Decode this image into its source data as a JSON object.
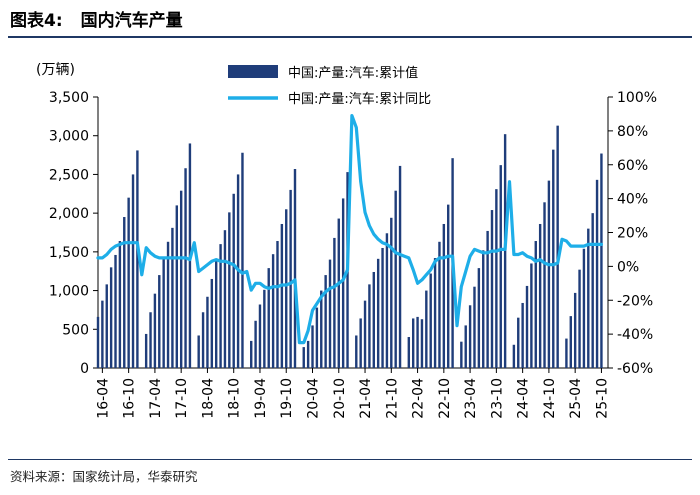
{
  "figure": {
    "number": "图表4:",
    "title": "国内汽车产量"
  },
  "source": "资料来源：国家统计局，华泰研究",
  "chart_data": {
    "type": "bar",
    "title": "国内汽车产量",
    "y_left_unit": "(万辆)",
    "y_left_ticks": [
      "0",
      "500",
      "1,000",
      "1,500",
      "2,000",
      "2,500",
      "3,000",
      "3,500"
    ],
    "y_left_lim": [
      0,
      3500
    ],
    "y_right_ticks": [
      "-60%",
      "-40%",
      "-20%",
      "0%",
      "20%",
      "40%",
      "60%",
      "80%",
      "100%"
    ],
    "y_right_lim": [
      -60,
      100
    ],
    "x_ticks": [
      "16-04",
      "16-10",
      "17-04",
      "17-10",
      "18-04",
      "18-10",
      "19-04",
      "19-10",
      "20-04",
      "20-10",
      "21-04",
      "21-10",
      "22-04",
      "22-10",
      "23-04",
      "23-10",
      "24-04",
      "24-10",
      "25-04",
      "25-10"
    ],
    "colors": {
      "bar": "#1f3d7a",
      "line": "#1eaee8",
      "rule": "#1f3864"
    },
    "series": [
      {
        "name": "中国:产量:汽车:累计值",
        "kind": "bar",
        "axis": "left",
        "dates": [
          "16-03",
          "16-04",
          "16-05",
          "16-06",
          "16-07",
          "16-08",
          "16-09",
          "16-10",
          "16-11",
          "16-12",
          "17-02",
          "17-03",
          "17-04",
          "17-05",
          "17-06",
          "17-07",
          "17-08",
          "17-09",
          "17-10",
          "17-11",
          "17-12",
          "18-02",
          "18-03",
          "18-04",
          "18-05",
          "18-06",
          "18-07",
          "18-08",
          "18-09",
          "18-10",
          "18-11",
          "18-12",
          "19-02",
          "19-03",
          "19-04",
          "19-05",
          "19-06",
          "19-07",
          "19-08",
          "19-09",
          "19-10",
          "19-11",
          "19-12",
          "20-02",
          "20-03",
          "20-04",
          "20-05",
          "20-06",
          "20-07",
          "20-08",
          "20-09",
          "20-10",
          "20-11",
          "20-12",
          "21-02",
          "21-03",
          "21-04",
          "21-05",
          "21-06",
          "21-07",
          "21-08",
          "21-09",
          "21-10",
          "21-11",
          "21-12",
          "22-02",
          "22-03",
          "22-04",
          "22-05",
          "22-06",
          "22-07",
          "22-08",
          "22-09",
          "22-10",
          "22-11",
          "22-12",
          "23-02",
          "23-03",
          "23-04",
          "23-05",
          "23-06",
          "23-07",
          "23-08",
          "23-09",
          "23-10",
          "23-11",
          "23-12",
          "24-02",
          "24-03",
          "24-04",
          "24-05",
          "24-06",
          "24-07",
          "24-08",
          "24-09",
          "24-10",
          "24-11",
          "24-12",
          "25-02",
          "25-03",
          "25-04",
          "25-05",
          "25-06",
          "25-07",
          "25-08",
          "25-09",
          "25-10"
        ],
        "values": [
          660,
          870,
          1080,
          1300,
          1460,
          1640,
          1950,
          2200,
          2500,
          2810,
          440,
          720,
          960,
          1200,
          1430,
          1630,
          1810,
          2100,
          2290,
          2580,
          2900,
          420,
          720,
          920,
          1150,
          1400,
          1600,
          1780,
          2010,
          2250,
          2500,
          2780,
          350,
          610,
          820,
          1010,
          1290,
          1470,
          1640,
          1860,
          2050,
          2300,
          2570,
          270,
          350,
          550,
          780,
          1000,
          1200,
          1400,
          1680,
          1930,
          2190,
          2530,
          420,
          640,
          870,
          1080,
          1240,
          1410,
          1550,
          1740,
          1940,
          2290,
          2610,
          400,
          640,
          660,
          630,
          1000,
          1220,
          1420,
          1630,
          1860,
          2110,
          2710,
          340,
          550,
          810,
          1050,
          1290,
          1520,
          1770,
          2040,
          2310,
          2620,
          3020,
          300,
          650,
          840,
          1060,
          1350,
          1640,
          1860,
          2140,
          2420,
          2820,
          3130,
          380,
          670,
          970,
          1270,
          1540,
          1800,
          2000,
          2430,
          2770
        ]
      },
      {
        "name": "中国:产量:汽车:累计同比",
        "kind": "line",
        "axis": "right",
        "dates": [
          "16-03",
          "16-04",
          "16-05",
          "16-06",
          "16-07",
          "16-08",
          "16-09",
          "16-10",
          "16-11",
          "16-12",
          "17-01",
          "17-02",
          "17-03",
          "17-04",
          "17-05",
          "17-06",
          "17-07",
          "17-08",
          "17-09",
          "17-10",
          "17-11",
          "17-12",
          "18-01",
          "18-02",
          "18-03",
          "18-04",
          "18-05",
          "18-06",
          "18-07",
          "18-08",
          "18-09",
          "18-10",
          "18-11",
          "18-12",
          "19-01",
          "19-02",
          "19-03",
          "19-04",
          "19-05",
          "19-06",
          "19-07",
          "19-08",
          "19-09",
          "19-10",
          "19-11",
          "19-12",
          "20-01",
          "20-02",
          "20-03",
          "20-04",
          "20-05",
          "20-06",
          "20-07",
          "20-08",
          "20-09",
          "20-10",
          "20-11",
          "20-12",
          "21-01",
          "21-02",
          "21-03",
          "21-04",
          "21-05",
          "21-06",
          "21-07",
          "21-08",
          "21-09",
          "21-10",
          "21-11",
          "21-12",
          "22-01",
          "22-02",
          "22-03",
          "22-04",
          "22-05",
          "22-06",
          "22-07",
          "22-08",
          "22-09",
          "22-10",
          "22-11",
          "22-12",
          "23-01",
          "23-02",
          "23-03",
          "23-04",
          "23-05",
          "23-06",
          "23-07",
          "23-08",
          "23-09",
          "23-10",
          "23-11",
          "23-12",
          "24-01",
          "24-02",
          "24-03",
          "24-04",
          "24-05",
          "24-06",
          "24-07",
          "24-08",
          "24-09",
          "24-10",
          "24-11",
          "24-12",
          "25-01",
          "25-02",
          "25-03",
          "25-04",
          "25-05",
          "25-06",
          "25-07",
          "25-08",
          "25-09",
          "25-10"
        ],
        "values": [
          5,
          5,
          7,
          10,
          12,
          13,
          14,
          14,
          14,
          14,
          -5,
          11,
          8,
          6,
          5,
          5,
          5,
          5,
          5,
          5,
          5,
          4,
          14,
          -3,
          -1,
          1,
          3,
          4,
          3,
          3,
          2,
          1,
          -2,
          -4,
          -3,
          -14,
          -10,
          -10,
          -12,
          -13,
          -12,
          -12,
          -11,
          -11,
          -10,
          -8,
          -45,
          -45,
          -38,
          -26,
          -22,
          -18,
          -15,
          -13,
          -12,
          -10,
          -8,
          -2,
          89,
          82,
          50,
          32,
          24,
          19,
          16,
          14,
          13,
          11,
          8,
          7,
          6,
          5,
          -2,
          -10,
          -8,
          -5,
          -2,
          3,
          5,
          5,
          6,
          6,
          -35,
          -12,
          -3,
          6,
          10,
          9,
          8,
          8,
          9,
          9,
          10,
          10,
          50,
          7,
          7,
          8,
          6,
          5,
          3,
          4,
          2,
          1,
          1,
          2,
          16,
          15,
          12,
          12,
          12,
          12,
          13,
          13,
          13,
          13
        ]
      }
    ]
  }
}
